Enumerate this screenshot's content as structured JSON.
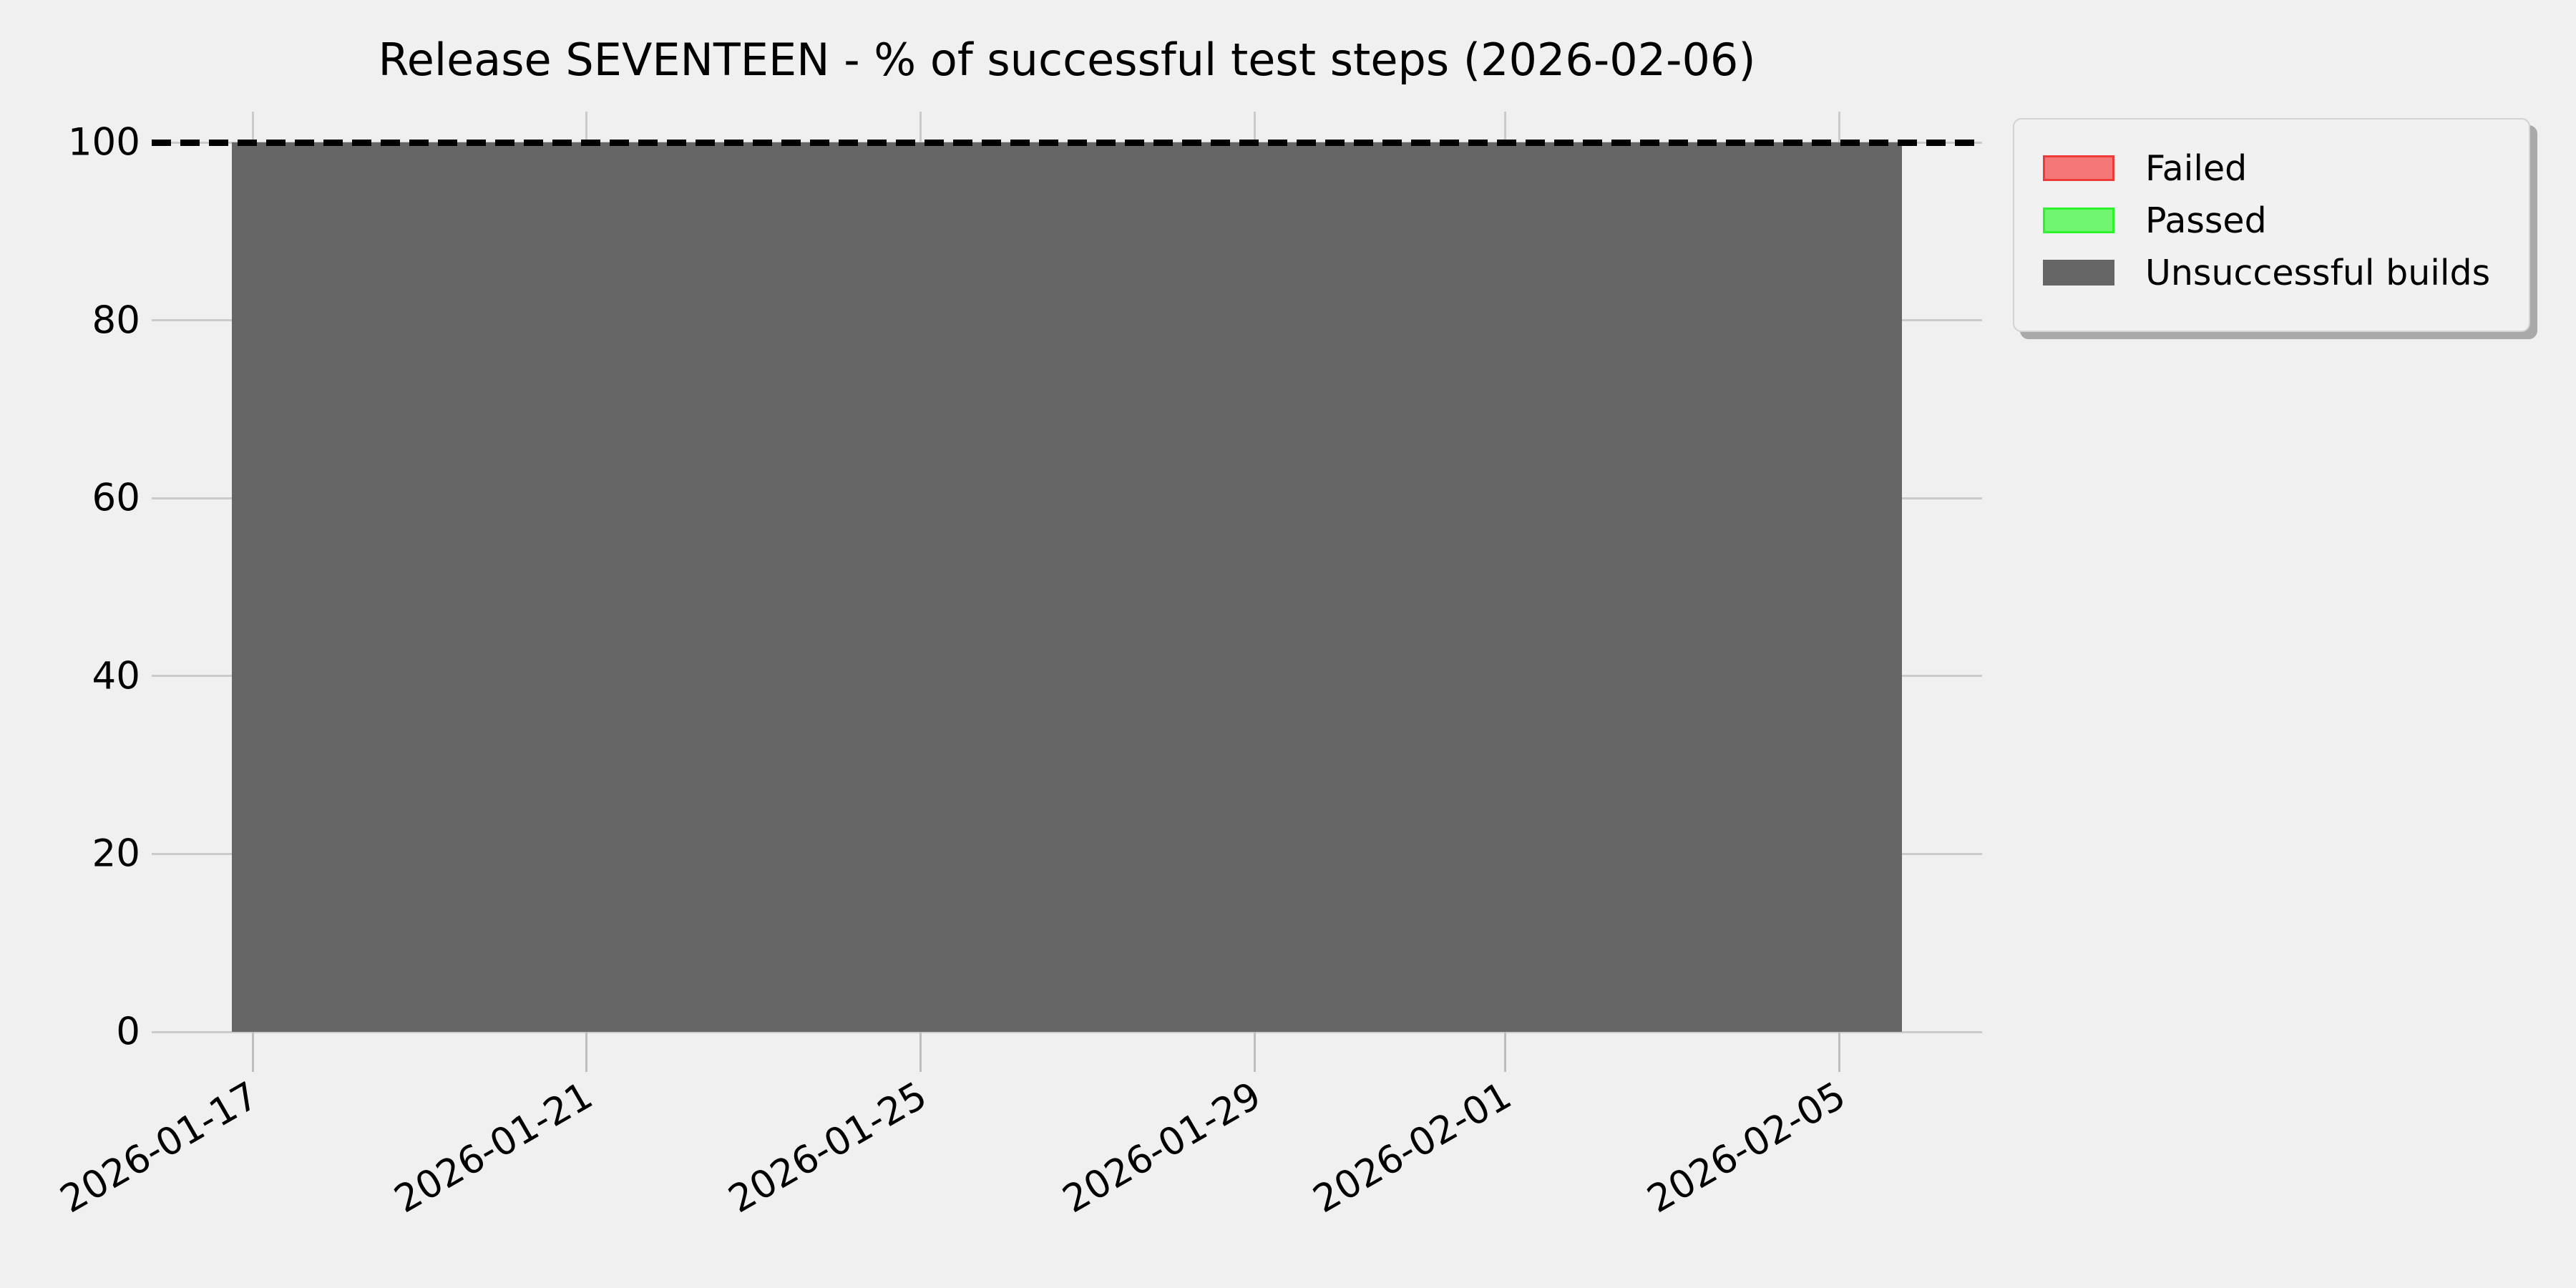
{
  "chart": {
    "title": "Release SEVENTEEN - % of successful test steps (2026-02-06)",
    "background_color": "#f0f0f0",
    "grid_color": "#cbcbcb",
    "tick_mark_color": "#bdbdbd",
    "text_color": "#000000",
    "legend": {
      "border_color": "#d2d2d2",
      "shadow_color": "#a9a9a9",
      "items": [
        {
          "label": "Failed",
          "fill": "#f57878",
          "border": "#ef3a3a"
        },
        {
          "label": "Passed",
          "fill": "#70f670",
          "border": "#2cf32c"
        },
        {
          "label": "Unsuccessful builds",
          "fill": "#666666",
          "border": "#666666"
        }
      ]
    }
  },
  "chart_data": {
    "type": "area",
    "stacked": true,
    "title": "Release SEVENTEEN - % of successful test steps (2026-02-06)",
    "x": [
      "2026-01-16T18:00",
      "2026-02-05T18:00"
    ],
    "series": [
      {
        "name": "Failed",
        "color": "#f57878",
        "values": [
          0,
          0
        ]
      },
      {
        "name": "Passed",
        "color": "#70f670",
        "values": [
          0,
          0
        ]
      },
      {
        "name": "Unsuccessful builds",
        "color": "#666666",
        "values": [
          100,
          100
        ]
      }
    ],
    "reference_line": {
      "y": 100,
      "style": "dashed",
      "color": "#000000"
    },
    "x_tick_labels": [
      "2026-01-17",
      "2026-01-21",
      "2026-01-25",
      "2026-01-29",
      "2026-02-01",
      "2026-02-05"
    ],
    "y_ticks": [
      0,
      20,
      40,
      60,
      80,
      100
    ],
    "y_tick_labels": [
      "0",
      "20",
      "40",
      "60",
      "80",
      "100"
    ],
    "xlim": [
      "2026-01-15T19:00",
      "2026-02-06T17:00"
    ],
    "ylim": [
      0,
      103.5
    ],
    "grid": true,
    "legend_position": "upper right, outside plot",
    "xlabel": "",
    "ylabel": ""
  }
}
